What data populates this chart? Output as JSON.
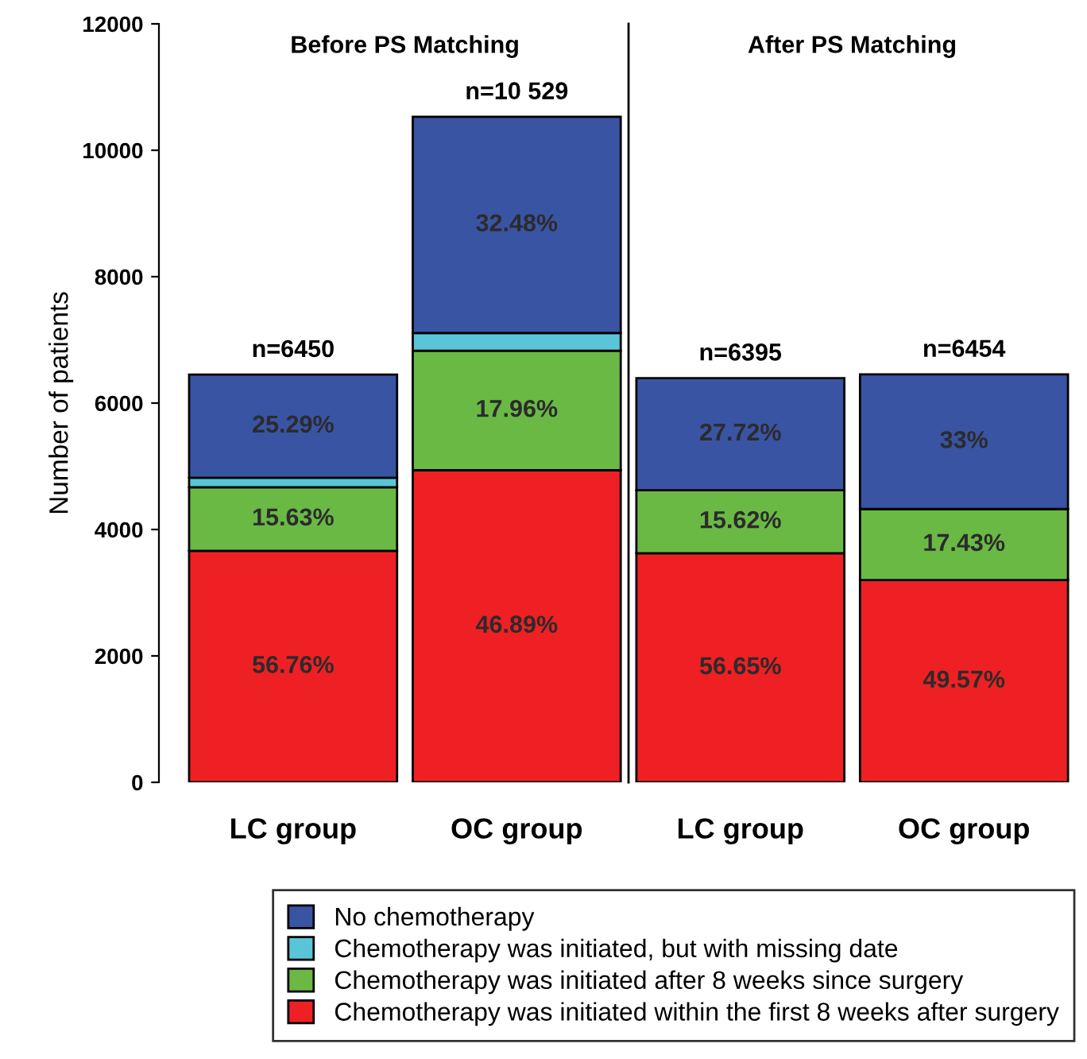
{
  "chart_data": {
    "type": "bar",
    "stacked": true,
    "ylabel": "Number of patients",
    "categories": [
      "LC group",
      "OC group",
      "LC group",
      "OC group"
    ],
    "series": [
      {
        "name": "Chemotherapy was initiated within the first 8 weeks after surgery",
        "color": "#ee2024",
        "values": [
          3661,
          4937,
          3623,
          3199
        ]
      },
      {
        "name": "Chemotherapy was initiated after 8 weeks since surgery",
        "color": "#6ab945",
        "values": [
          1008,
          1891,
          999,
          1125
        ]
      },
      {
        "name": "Chemotherapy was initiated, but with missing date",
        "color": "#5bc5d8",
        "values": [
          150,
          281,
          0,
          0
        ]
      },
      {
        "name": "No chemotherapy",
        "color": "#3a54a4",
        "values": [
          1631,
          3420,
          1773,
          2130
        ]
      }
    ],
    "totals": [
      "n=6450",
      "n=10 529",
      "n=6395",
      "n=6454"
    ],
    "annotations": [
      "Before PS Matching",
      "After PS Matching",
      "56.76%",
      "46.89%",
      "56.65%",
      "49.57%",
      "15.63%",
      "17.96%",
      "15.62%",
      "17.43%",
      "25.29%",
      "32.48%",
      "27.72%",
      "33%"
    ],
    "ylim": [
      0,
      12000
    ],
    "yticks": [
      0,
      2000,
      4000,
      6000,
      8000,
      10000,
      12000
    ],
    "grid": false,
    "legend": "bottom"
  }
}
